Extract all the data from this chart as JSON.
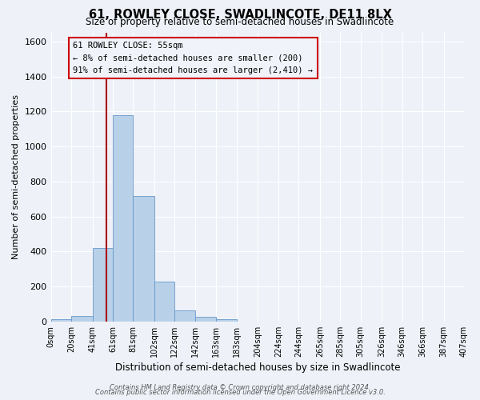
{
  "title": "61, ROWLEY CLOSE, SWADLINCOTE, DE11 8LX",
  "subtitle": "Size of property relative to semi-detached houses in Swadlincote",
  "xlabel": "Distribution of semi-detached houses by size in Swadlincote",
  "ylabel": "Number of semi-detached properties",
  "bin_edges": [
    0,
    20,
    41,
    61,
    81,
    102,
    122,
    142,
    163,
    183,
    204,
    224,
    244,
    265,
    285,
    305,
    326,
    346,
    366,
    387,
    407
  ],
  "bar_heights": [
    15,
    30,
    420,
    1180,
    715,
    230,
    65,
    25,
    12,
    0,
    0,
    0,
    0,
    0,
    0,
    0,
    0,
    0,
    0,
    0
  ],
  "bar_color": "#b8d0e8",
  "bar_edgecolor": "#6699cc",
  "property_line_x": 55,
  "property_line_color": "#aa0000",
  "annotation_title": "61 ROWLEY CLOSE: 55sqm",
  "annotation_line1": "← 8% of semi-detached houses are smaller (200)",
  "annotation_line2": "91% of semi-detached houses are larger (2,410) →",
  "annotation_box_edgecolor": "#cc0000",
  "annotation_box_facecolor": "#f0f4fa",
  "ylim": [
    0,
    1650
  ],
  "yticks": [
    0,
    200,
    400,
    600,
    800,
    1000,
    1200,
    1400,
    1600
  ],
  "tick_labels": [
    "0sqm",
    "20sqm",
    "41sqm",
    "61sqm",
    "81sqm",
    "102sqm",
    "122sqm",
    "142sqm",
    "163sqm",
    "183sqm",
    "204sqm",
    "224sqm",
    "244sqm",
    "265sqm",
    "285sqm",
    "305sqm",
    "326sqm",
    "346sqm",
    "366sqm",
    "387sqm",
    "407sqm"
  ],
  "footer1": "Contains HM Land Registry data © Crown copyright and database right 2024.",
  "footer2": "Contains public sector information licensed under the Open Government Licence v3.0.",
  "background_color": "#eef2f8",
  "grid_color": "#d8dfe8"
}
